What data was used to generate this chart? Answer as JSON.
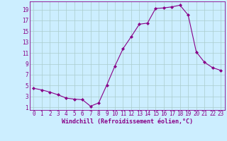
{
  "x": [
    0,
    1,
    2,
    3,
    4,
    5,
    6,
    7,
    8,
    9,
    10,
    11,
    12,
    13,
    14,
    15,
    16,
    17,
    18,
    19,
    20,
    21,
    22,
    23
  ],
  "y": [
    4.5,
    4.2,
    3.8,
    3.3,
    2.7,
    2.5,
    2.4,
    1.2,
    1.8,
    5.1,
    8.6,
    11.8,
    14.0,
    16.3,
    16.5,
    19.2,
    19.3,
    19.5,
    19.8,
    18.0,
    11.2,
    9.3,
    8.3,
    7.8
  ],
  "line_color": "#880088",
  "marker": "D",
  "marker_size": 2.0,
  "xlabel": "Windchill (Refroidissement éolien,°C)",
  "bg_color": "#cceeff",
  "grid_color": "#aacccc",
  "xlim": [
    -0.5,
    23.5
  ],
  "ylim": [
    0.5,
    20.5
  ],
  "xticks": [
    0,
    1,
    2,
    3,
    4,
    5,
    6,
    7,
    8,
    9,
    10,
    11,
    12,
    13,
    14,
    15,
    16,
    17,
    18,
    19,
    20,
    21,
    22,
    23
  ],
  "yticks": [
    1,
    3,
    5,
    7,
    9,
    11,
    13,
    15,
    17,
    19
  ],
  "tick_label_fontsize": 5.5,
  "xlabel_fontsize": 6.0
}
